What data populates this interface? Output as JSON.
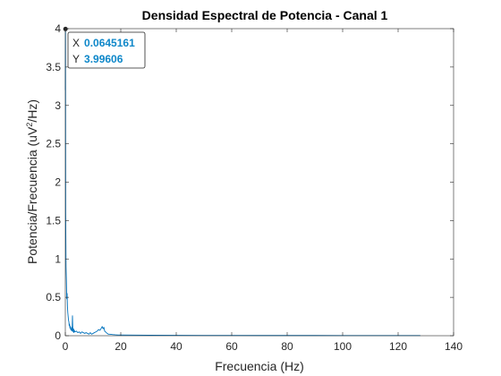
{
  "chart_data": {
    "type": "line",
    "title": "Densidad Espectral de Potencia - Canal 1",
    "xlabel": "Frecuencia (Hz)",
    "ylabel_main": "Potencia/Frecuencia (uV",
    "ylabel_sup": "2",
    "ylabel_tail": "/Hz)",
    "xlim": [
      0,
      140
    ],
    "ylim": [
      0,
      4
    ],
    "x_ticks": [
      "0",
      "20",
      "40",
      "60",
      "80",
      "100",
      "120",
      "140"
    ],
    "y_ticks": [
      "0",
      "0.5",
      "1",
      "1.5",
      "2",
      "2.5",
      "3",
      "3.5",
      "4"
    ],
    "grid": false,
    "series": [
      {
        "color": "#0072bd",
        "x": [
          0,
          0.0645161,
          0.13,
          0.26,
          0.39,
          0.52,
          0.65,
          0.77,
          0.9,
          1.03,
          1.16,
          1.29,
          1.42,
          1.55,
          1.68,
          1.81,
          1.94,
          2.06,
          2.19,
          2.32,
          2.45,
          2.58,
          2.71,
          2.84,
          2.97,
          3.1,
          3.23,
          3.5,
          4.0,
          4.5,
          5.0,
          5.5,
          6.0,
          6.5,
          7.0,
          7.5,
          8.0,
          8.5,
          9.0,
          9.5,
          10.0,
          10.5,
          11.0,
          11.5,
          12.0,
          12.5,
          13.0,
          13.3,
          13.6,
          13.9,
          14.2,
          14.5,
          14.8,
          15.1,
          15.5,
          16.0,
          17.0,
          18.0,
          19.0,
          20.0,
          25.0,
          30.0,
          40.0,
          50.0,
          60.0,
          70.0,
          80.0,
          90.0,
          100.0,
          110.0,
          120.0,
          128.0
        ],
        "y": [
          3.2,
          3.99606,
          1.6,
          0.9,
          0.72,
          0.48,
          0.55,
          0.38,
          0.3,
          0.25,
          0.2,
          0.18,
          0.13,
          0.15,
          0.1,
          0.12,
          0.08,
          0.09,
          0.07,
          0.11,
          0.06,
          0.26,
          0.08,
          0.05,
          0.09,
          0.04,
          0.07,
          0.05,
          0.06,
          0.04,
          0.05,
          0.03,
          0.05,
          0.04,
          0.03,
          0.04,
          0.03,
          0.02,
          0.04,
          0.02,
          0.03,
          0.04,
          0.05,
          0.06,
          0.08,
          0.07,
          0.1,
          0.12,
          0.09,
          0.11,
          0.06,
          0.05,
          0.04,
          0.03,
          0.02,
          0.02,
          0.015,
          0.012,
          0.01,
          0.01,
          0.008,
          0.006,
          0.005,
          0.004,
          0.004,
          0.003,
          0.003,
          0.003,
          0.002,
          0.002,
          0.002,
          0.002
        ]
      }
    ],
    "datatip": {
      "x_label": "X",
      "x_value": "0.0645161",
      "y_label": "Y",
      "y_value": "3.99606",
      "x": 0.0645161,
      "y": 3.99606
    },
    "colors": {
      "line": "#0072bd",
      "datatip_value": "#0e87c9",
      "axis": "#262626"
    }
  }
}
